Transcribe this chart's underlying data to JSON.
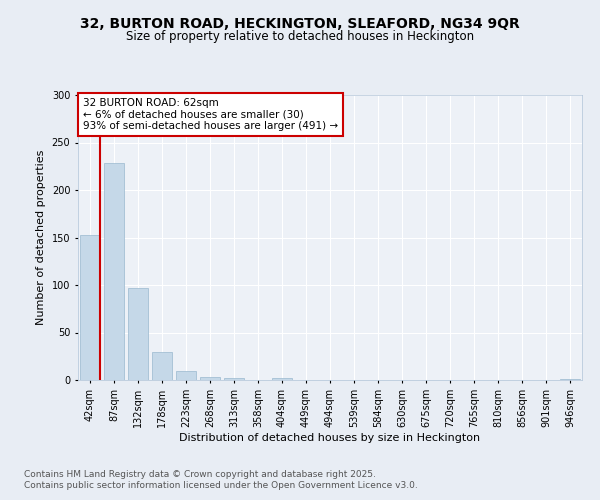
{
  "title1": "32, BURTON ROAD, HECKINGTON, SLEAFORD, NG34 9QR",
  "title2": "Size of property relative to detached houses in Heckington",
  "xlabel": "Distribution of detached houses by size in Heckington",
  "ylabel": "Number of detached properties",
  "categories": [
    "42sqm",
    "87sqm",
    "132sqm",
    "178sqm",
    "223sqm",
    "268sqm",
    "313sqm",
    "358sqm",
    "404sqm",
    "449sqm",
    "494sqm",
    "539sqm",
    "584sqm",
    "630sqm",
    "675sqm",
    "720sqm",
    "765sqm",
    "810sqm",
    "856sqm",
    "901sqm",
    "946sqm"
  ],
  "values": [
    153,
    228,
    97,
    30,
    10,
    3,
    2,
    0,
    2,
    0,
    0,
    0,
    0,
    0,
    0,
    0,
    0,
    0,
    0,
    0,
    1
  ],
  "bar_color": "#c5d8e8",
  "bar_edge_color": "#9ab8ce",
  "vline_x": 0.42,
  "vline_color": "#cc0000",
  "annotation_text": "32 BURTON ROAD: 62sqm\n← 6% of detached houses are smaller (30)\n93% of semi-detached houses are larger (491) →",
  "annotation_box_color": "#ffffff",
  "annotation_box_edge": "#cc0000",
  "ylim": [
    0,
    300
  ],
  "yticks": [
    0,
    50,
    100,
    150,
    200,
    250,
    300
  ],
  "bg_color": "#e8edf4",
  "plot_bg_color": "#edf1f7",
  "footer1": "Contains HM Land Registry data © Crown copyright and database right 2025.",
  "footer2": "Contains public sector information licensed under the Open Government Licence v3.0.",
  "title1_fontsize": 10,
  "title2_fontsize": 8.5,
  "xlabel_fontsize": 8,
  "ylabel_fontsize": 8,
  "tick_fontsize": 7,
  "footer_fontsize": 6.5,
  "annotation_fontsize": 7.5
}
